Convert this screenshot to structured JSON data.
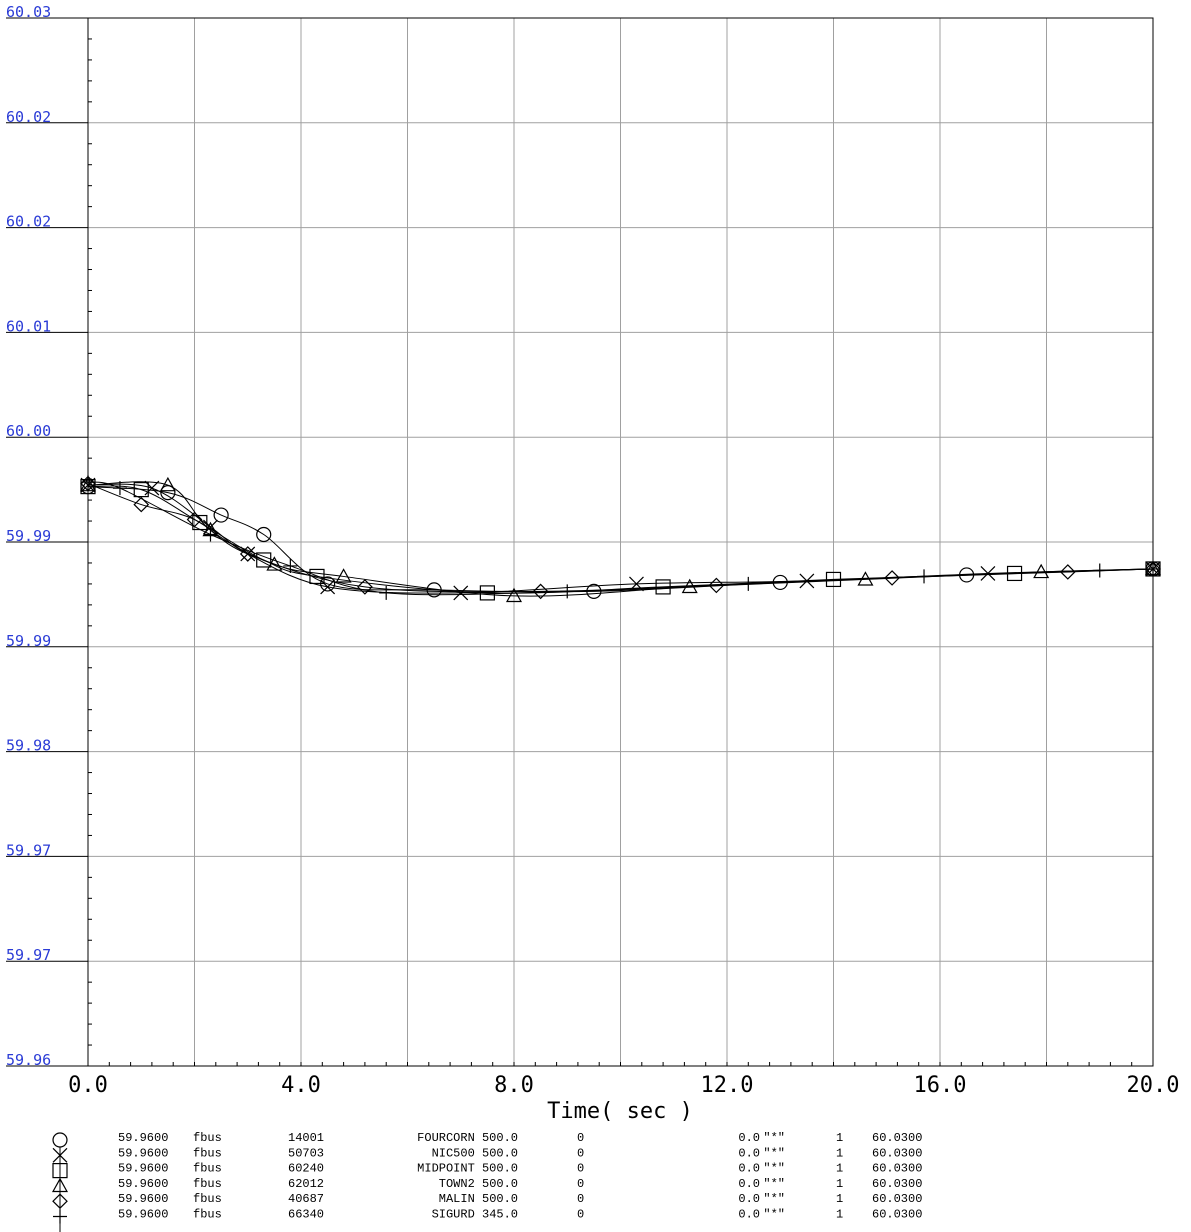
{
  "chart_data": {
    "type": "line",
    "xlabel": "Time( sec )",
    "xlim": [
      0.0,
      20.0
    ],
    "ylim": [
      59.96,
      60.03
    ],
    "x_ticks": [
      "0.0",
      "4.0",
      "8.0",
      "12.0",
      "16.0",
      "20.0"
    ],
    "x_tick_values": [
      0,
      4,
      8,
      12,
      16,
      20
    ],
    "y_ticks": [
      "60.03",
      "60.02",
      "60.02",
      "60.01",
      "60.00",
      "59.99",
      "59.99",
      "59.98",
      "59.97",
      "59.97",
      "59.96"
    ],
    "grid": true,
    "series": [
      {
        "marker": "circle",
        "values": [
          [
            0.0,
            59.9987
          ],
          [
            1.5,
            59.9983
          ],
          [
            2.5,
            59.9968
          ],
          [
            3.3,
            59.9955
          ],
          [
            4.5,
            59.9922
          ],
          [
            6.5,
            59.9918
          ],
          [
            9.5,
            59.9917
          ],
          [
            13.0,
            59.9923
          ],
          [
            16.5,
            59.9928
          ],
          [
            20.0,
            59.9932
          ]
        ],
        "legend": {
          "min": "59.9600",
          "type": "fbus",
          "bus": "14001",
          "name": "FOURCORN 500.0",
          "area": "0",
          "val": "0.0",
          "flag": "\"*\"",
          "id": "1",
          "max": "60.0300"
        }
      },
      {
        "marker": "x",
        "values": [
          [
            0.0,
            59.9988
          ],
          [
            1.2,
            59.9986
          ],
          [
            2.3,
            59.996
          ],
          [
            3.0,
            59.9942
          ],
          [
            4.5,
            59.992
          ],
          [
            7.0,
            59.9916
          ],
          [
            10.3,
            59.9922
          ],
          [
            13.5,
            59.9924
          ],
          [
            16.9,
            59.9929
          ],
          [
            20.0,
            59.9932
          ]
        ],
        "legend": {
          "min": "59.9600",
          "type": "fbus",
          "bus": "50703",
          "name": "NIC500 500.0",
          "area": "0",
          "val": "0.0",
          "flag": "\"*\"",
          "id": "1",
          "max": "60.0300"
        }
      },
      {
        "marker": "square",
        "values": [
          [
            0.0,
            59.9987
          ],
          [
            1.0,
            59.9985
          ],
          [
            2.1,
            59.9963
          ],
          [
            3.3,
            59.9938
          ],
          [
            4.3,
            59.9927
          ],
          [
            7.5,
            59.9916
          ],
          [
            10.8,
            59.992
          ],
          [
            14.0,
            59.9925
          ],
          [
            17.4,
            59.9929
          ],
          [
            20.0,
            59.9932
          ]
        ],
        "legend": {
          "min": "59.9600",
          "type": "fbus",
          "bus": "60240",
          "name": "MIDPOINT 500.0",
          "area": "0",
          "val": "0.0",
          "flag": "\"*\"",
          "id": "1",
          "max": "60.0300"
        }
      },
      {
        "marker": "triangle",
        "values": [
          [
            0.0,
            59.9988
          ],
          [
            1.5,
            59.9988
          ],
          [
            2.3,
            59.9958
          ],
          [
            3.5,
            59.9935
          ],
          [
            4.8,
            59.9927
          ],
          [
            8.0,
            59.9914
          ],
          [
            11.3,
            59.992
          ],
          [
            14.6,
            59.9925
          ],
          [
            17.9,
            59.993
          ],
          [
            20.0,
            59.9932
          ]
        ],
        "legend": {
          "min": "59.9600",
          "type": "fbus",
          "bus": "62012",
          "name": "TOWN2 500.0",
          "area": "0",
          "val": "0.0",
          "flag": "\"*\"",
          "id": "1",
          "max": "60.0300"
        }
      },
      {
        "marker": "diamond",
        "values": [
          [
            0.0,
            59.9989
          ],
          [
            1.0,
            59.9975
          ],
          [
            2.0,
            59.9965
          ],
          [
            3.0,
            59.9942
          ],
          [
            5.2,
            59.992
          ],
          [
            8.5,
            59.9917
          ],
          [
            11.8,
            59.9921
          ],
          [
            15.1,
            59.9926
          ],
          [
            18.4,
            59.993
          ],
          [
            20.0,
            59.9932
          ]
        ],
        "legend": {
          "min": "59.9600",
          "type": "fbus",
          "bus": "40687",
          "name": "MALIN 500.0",
          "area": "0",
          "val": "0.0",
          "flag": "\"*\"",
          "id": "1",
          "max": "60.0300"
        }
      },
      {
        "marker": "plus",
        "values": [
          [
            0.0,
            59.999
          ],
          [
            0.6,
            59.9986
          ],
          [
            2.3,
            59.9955
          ],
          [
            3.8,
            59.9934
          ],
          [
            5.6,
            59.9916
          ],
          [
            9.0,
            59.9917
          ],
          [
            12.4,
            59.9922
          ],
          [
            15.7,
            59.9927
          ],
          [
            19.0,
            59.9931
          ],
          [
            20.0,
            59.9932
          ]
        ],
        "legend": {
          "min": "59.9600",
          "type": "fbus",
          "bus": "66340",
          "name": "SIGURD 345.0",
          "area": "0",
          "val": "0.0",
          "flag": "\"*\"",
          "id": "1",
          "max": "60.0300"
        }
      }
    ]
  }
}
